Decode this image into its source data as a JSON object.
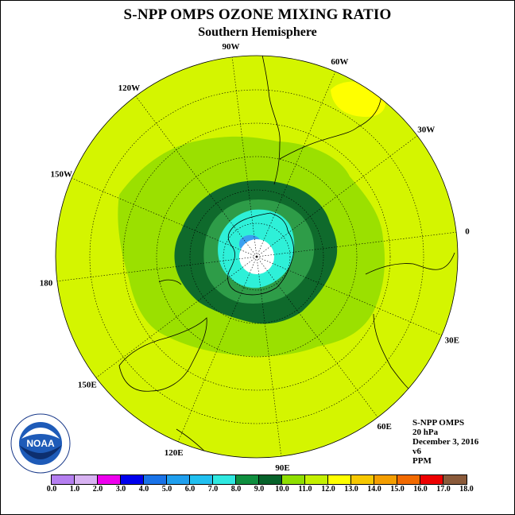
{
  "title": "S-NPP OMPS OZONE MIXING RATIO",
  "subtitle": "Southern Hemisphere",
  "longitude_labels": [
    "90W",
    "60W",
    "30W",
    "0",
    "30E",
    "60E",
    "90E",
    "120E",
    "150E",
    "180",
    "150W",
    "120W"
  ],
  "info": {
    "instrument": "S-NPP OMPS",
    "level": "20 hPa",
    "date": "December 3, 2016",
    "version": "v6",
    "units": "PPM"
  },
  "logo": {
    "text": "NOAA",
    "icon": "noaa-logo"
  },
  "legend": {
    "ticks": [
      "0.0",
      "1.0",
      "2.0",
      "3.0",
      "4.0",
      "5.0",
      "6.0",
      "7.0",
      "8.0",
      "9.0",
      "10.0",
      "11.0",
      "12.0",
      "13.0",
      "14.0",
      "15.0",
      "16.0",
      "17.0",
      "18.0"
    ],
    "colors": [
      "#b57ff0",
      "#d8b2f2",
      "#ee00ee",
      "#0000ee",
      "#1a73e8",
      "#1f9fee",
      "#21c0f0",
      "#2fe8e0",
      "#0f8f3f",
      "#06622a",
      "#8fdf00",
      "#c4f000",
      "#ffff00",
      "#f7c800",
      "#f49e00",
      "#f26a00",
      "#ee0000",
      "#8a5a3a"
    ]
  },
  "map_fields": {
    "background_value_ppm": "11-12",
    "colors": {
      "outer": "#d4f500",
      "ring_green": "#9be000",
      "dark_green": "#0f6a2c",
      "mid_green": "#2e9c48",
      "cyan": "#2ef0d8",
      "blue": "#3aa0f0",
      "yellow": "#ffff00",
      "pole": "#ffffff"
    }
  }
}
